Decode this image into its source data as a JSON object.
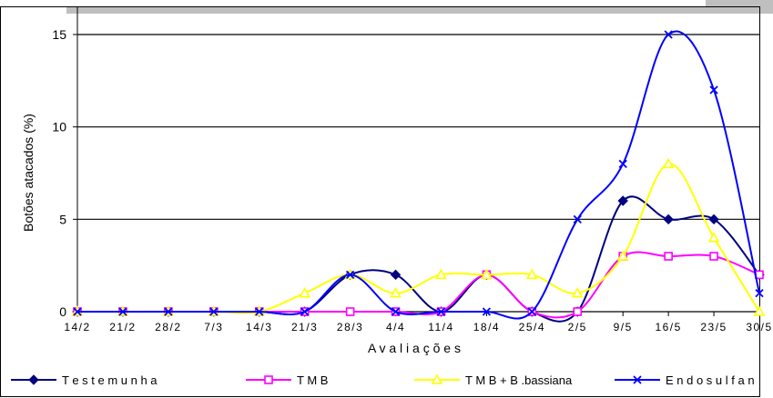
{
  "chart_data": {
    "type": "line",
    "title": "",
    "xlabel": "A v a l i a ç õ e s",
    "ylabel": "Botões atacados (%)",
    "ylim": [
      0,
      16
    ],
    "yticks": [
      0,
      5,
      10,
      15
    ],
    "grid": "horizontal",
    "legend_position": "bottom",
    "categories": [
      "14/2",
      "21/2",
      "28/2",
      "7/3",
      "14/3",
      "21/3",
      "28/3",
      "4/4",
      "11/4",
      "18/4",
      "25/4",
      "2/5",
      "9/5",
      "16/5",
      "23/5",
      "30/5"
    ],
    "series": [
      {
        "name": "T e s t e m u n h a",
        "color": "#000080",
        "marker": "diamond",
        "values": [
          0,
          0,
          0,
          0,
          0,
          0,
          2,
          2,
          0,
          2,
          0,
          0,
          6,
          5,
          5,
          2
        ]
      },
      {
        "name": "T M B",
        "color": "#ff00ff",
        "marker": "square",
        "values": [
          0,
          0,
          0,
          0,
          0,
          0,
          0,
          0,
          0,
          2,
          0,
          0,
          3,
          3,
          3,
          2
        ]
      },
      {
        "name": "T M B + B .bassiana",
        "color": "#ffff00",
        "marker": "triangle",
        "values": [
          0,
          0,
          0,
          0,
          0,
          1,
          2,
          1,
          2,
          2,
          2,
          1,
          3,
          8,
          4,
          0
        ]
      },
      {
        "name": "E n d o s u l f a n",
        "color": "#0000ff",
        "marker": "x",
        "values": [
          0,
          0,
          0,
          0,
          0,
          0,
          2,
          0,
          0,
          0,
          0,
          5,
          8,
          15,
          12,
          1
        ]
      }
    ]
  }
}
